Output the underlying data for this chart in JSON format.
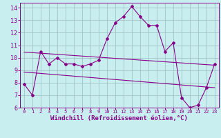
{
  "xlabel": "Windchill (Refroidissement éolien,°C)",
  "bg_color": "#c8eef0",
  "line_color": "#880088",
  "grid_color": "#99bbbb",
  "ylim": [
    6,
    14.4
  ],
  "xlim": [
    -0.5,
    23.5
  ],
  "yticks": [
    6,
    7,
    8,
    9,
    10,
    11,
    12,
    13,
    14
  ],
  "xticks": [
    0,
    1,
    2,
    3,
    4,
    5,
    6,
    7,
    8,
    9,
    10,
    11,
    12,
    13,
    14,
    15,
    16,
    17,
    18,
    19,
    20,
    21,
    22,
    23
  ],
  "main_x": [
    0,
    1,
    2,
    3,
    4,
    5,
    6,
    7,
    8,
    9,
    10,
    11,
    12,
    13,
    14,
    15,
    16,
    17,
    18,
    19,
    20,
    21,
    22,
    23
  ],
  "main_y": [
    7.9,
    7.0,
    10.5,
    9.5,
    10.0,
    9.5,
    9.5,
    9.3,
    9.5,
    9.8,
    11.5,
    12.8,
    13.3,
    14.1,
    13.3,
    12.6,
    12.6,
    10.5,
    11.2,
    6.8,
    6.0,
    6.2,
    7.6,
    9.5
  ],
  "trend1_x": [
    0,
    23
  ],
  "trend1_y": [
    10.45,
    9.4
  ],
  "trend2_x": [
    0,
    23
  ],
  "trend2_y": [
    8.85,
    7.6
  ],
  "xtick_fontsize": 5.0,
  "ytick_fontsize": 6.0,
  "label_fontsize": 6.5
}
